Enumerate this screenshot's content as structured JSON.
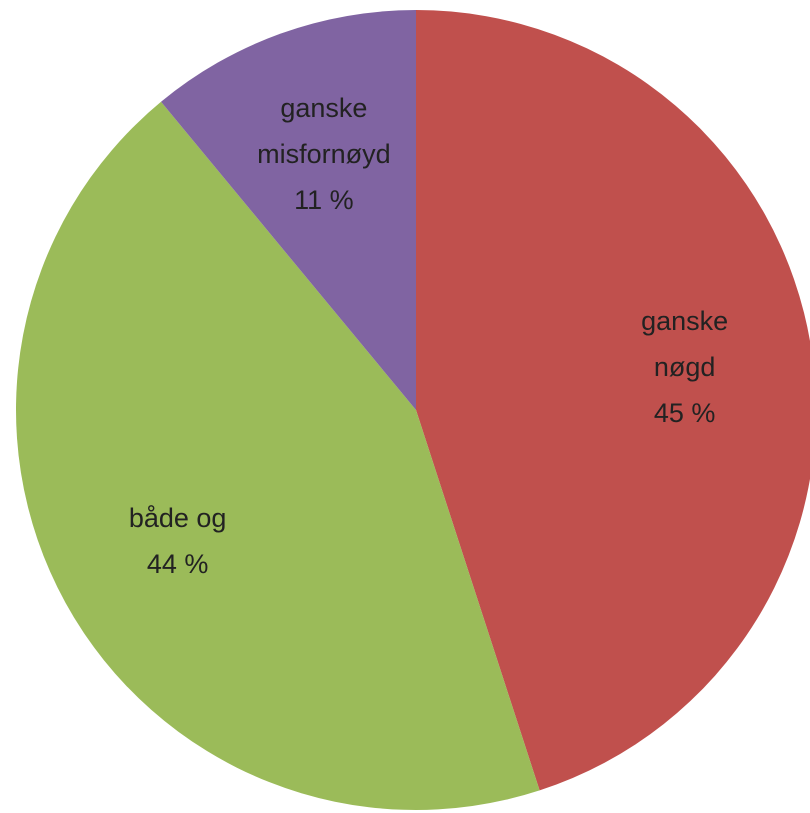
{
  "chart_data": {
    "type": "pie",
    "categories": [
      "ganske nøgd",
      "både og",
      "ganske misfornøyd"
    ],
    "values": [
      45,
      44,
      11
    ],
    "value_labels": [
      "45 %",
      "44 %",
      "11 %"
    ],
    "colors": [
      "#c0504d",
      "#9bbb59",
      "#8064a2"
    ]
  }
}
